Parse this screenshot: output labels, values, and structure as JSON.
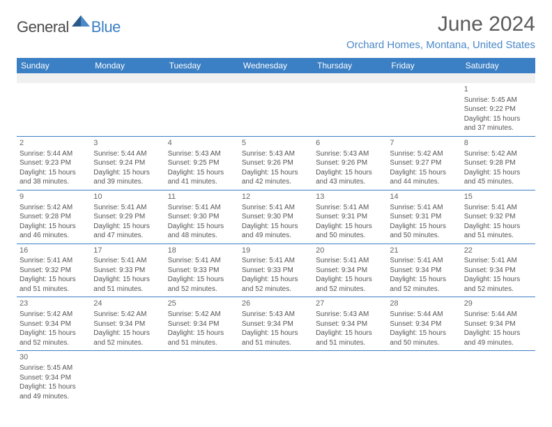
{
  "logo": {
    "dark": "General",
    "blue": "Blue"
  },
  "title": "June 2024",
  "location": "Orchard Homes, Montana, United States",
  "weekdays": [
    "Sunday",
    "Monday",
    "Tuesday",
    "Wednesday",
    "Thursday",
    "Friday",
    "Saturday"
  ],
  "colors": {
    "header_bg": "#3b7fc4",
    "accent_blue": "#4a88c7",
    "text_dark": "#4a4a4a",
    "text_body": "#555555"
  },
  "typography": {
    "title_fontsize": 30,
    "location_fontsize": 15,
    "weekday_fontsize": 12,
    "cell_fontsize": 10
  },
  "days": [
    {
      "n": 1,
      "sunrise": "5:45 AM",
      "sunset": "9:22 PM",
      "daylight": "15 hours and 37 minutes."
    },
    {
      "n": 2,
      "sunrise": "5:44 AM",
      "sunset": "9:23 PM",
      "daylight": "15 hours and 38 minutes."
    },
    {
      "n": 3,
      "sunrise": "5:44 AM",
      "sunset": "9:24 PM",
      "daylight": "15 hours and 39 minutes."
    },
    {
      "n": 4,
      "sunrise": "5:43 AM",
      "sunset": "9:25 PM",
      "daylight": "15 hours and 41 minutes."
    },
    {
      "n": 5,
      "sunrise": "5:43 AM",
      "sunset": "9:26 PM",
      "daylight": "15 hours and 42 minutes."
    },
    {
      "n": 6,
      "sunrise": "5:43 AM",
      "sunset": "9:26 PM",
      "daylight": "15 hours and 43 minutes."
    },
    {
      "n": 7,
      "sunrise": "5:42 AM",
      "sunset": "9:27 PM",
      "daylight": "15 hours and 44 minutes."
    },
    {
      "n": 8,
      "sunrise": "5:42 AM",
      "sunset": "9:28 PM",
      "daylight": "15 hours and 45 minutes."
    },
    {
      "n": 9,
      "sunrise": "5:42 AM",
      "sunset": "9:28 PM",
      "daylight": "15 hours and 46 minutes."
    },
    {
      "n": 10,
      "sunrise": "5:41 AM",
      "sunset": "9:29 PM",
      "daylight": "15 hours and 47 minutes."
    },
    {
      "n": 11,
      "sunrise": "5:41 AM",
      "sunset": "9:30 PM",
      "daylight": "15 hours and 48 minutes."
    },
    {
      "n": 12,
      "sunrise": "5:41 AM",
      "sunset": "9:30 PM",
      "daylight": "15 hours and 49 minutes."
    },
    {
      "n": 13,
      "sunrise": "5:41 AM",
      "sunset": "9:31 PM",
      "daylight": "15 hours and 50 minutes."
    },
    {
      "n": 14,
      "sunrise": "5:41 AM",
      "sunset": "9:31 PM",
      "daylight": "15 hours and 50 minutes."
    },
    {
      "n": 15,
      "sunrise": "5:41 AM",
      "sunset": "9:32 PM",
      "daylight": "15 hours and 51 minutes."
    },
    {
      "n": 16,
      "sunrise": "5:41 AM",
      "sunset": "9:32 PM",
      "daylight": "15 hours and 51 minutes."
    },
    {
      "n": 17,
      "sunrise": "5:41 AM",
      "sunset": "9:33 PM",
      "daylight": "15 hours and 51 minutes."
    },
    {
      "n": 18,
      "sunrise": "5:41 AM",
      "sunset": "9:33 PM",
      "daylight": "15 hours and 52 minutes."
    },
    {
      "n": 19,
      "sunrise": "5:41 AM",
      "sunset": "9:33 PM",
      "daylight": "15 hours and 52 minutes."
    },
    {
      "n": 20,
      "sunrise": "5:41 AM",
      "sunset": "9:34 PM",
      "daylight": "15 hours and 52 minutes."
    },
    {
      "n": 21,
      "sunrise": "5:41 AM",
      "sunset": "9:34 PM",
      "daylight": "15 hours and 52 minutes."
    },
    {
      "n": 22,
      "sunrise": "5:41 AM",
      "sunset": "9:34 PM",
      "daylight": "15 hours and 52 minutes."
    },
    {
      "n": 23,
      "sunrise": "5:42 AM",
      "sunset": "9:34 PM",
      "daylight": "15 hours and 52 minutes."
    },
    {
      "n": 24,
      "sunrise": "5:42 AM",
      "sunset": "9:34 PM",
      "daylight": "15 hours and 52 minutes."
    },
    {
      "n": 25,
      "sunrise": "5:42 AM",
      "sunset": "9:34 PM",
      "daylight": "15 hours and 51 minutes."
    },
    {
      "n": 26,
      "sunrise": "5:43 AM",
      "sunset": "9:34 PM",
      "daylight": "15 hours and 51 minutes."
    },
    {
      "n": 27,
      "sunrise": "5:43 AM",
      "sunset": "9:34 PM",
      "daylight": "15 hours and 51 minutes."
    },
    {
      "n": 28,
      "sunrise": "5:44 AM",
      "sunset": "9:34 PM",
      "daylight": "15 hours and 50 minutes."
    },
    {
      "n": 29,
      "sunrise": "5:44 AM",
      "sunset": "9:34 PM",
      "daylight": "15 hours and 49 minutes."
    },
    {
      "n": 30,
      "sunrise": "5:45 AM",
      "sunset": "9:34 PM",
      "daylight": "15 hours and 49 minutes."
    }
  ],
  "labels": {
    "sunrise": "Sunrise:",
    "sunset": "Sunset:",
    "daylight": "Daylight:"
  },
  "first_weekday_index": 6
}
